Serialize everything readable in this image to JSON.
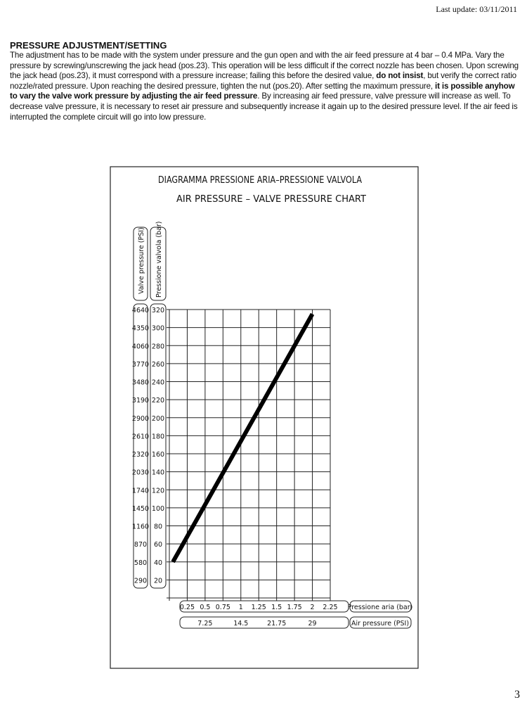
{
  "header": {
    "last_update": "Last update: 03/11/2011"
  },
  "section": {
    "title": "PRESSURE ADJUSTMENT/SETTING",
    "p1": "The adjustment has to be made with the system under pressure and the gun open and with the air feed pressure at 4 bar – 0.4 MPa. Vary the pressure by screwing/unscrewing the jack head (pos.23). This operation will be less difficult if the correct nozzle has been chosen. Upon screwing the jack head (pos.23), it must correspond with a pressure increase; failing this before the desired value, ",
    "b1": "do not insist",
    "p2": ", but verify the correct ratio nozzle/rated pressure. Upon reaching the desired pressure, tighten the nut (pos.20). After setting the maximum pressure, ",
    "b2": "it is possible anyhow to vary the valve work pressure by adjusting the air feed pressure",
    "p3": ". By increasing air feed pressure, valve pressure will increase as well. To decrease valve pressure, it is necessary to reset air pressure and subsequently increase it again up to the desired pressure level. If the air feed is interrupted the complete circuit will go into low pressure."
  },
  "chart_data": {
    "type": "line",
    "title": "DIAGRAMMA PRESSIONE ARIA–PRESSIONE VALVOLA",
    "subtitle": "AIR PRESSURE – VALVE PRESSURE CHART",
    "xlabel": "Pressione aria (bar)",
    "xlabel2": "Air pressure (PSI)",
    "ylabel": "Pressione valvola (bar)",
    "ylabel2": "Valve pressure (PSI)",
    "xlim": [
      0,
      2.25
    ],
    "ylim": [
      0,
      320
    ],
    "grid": true,
    "x_ticks": [
      "0.25",
      "0.5",
      "0.75",
      "1",
      "1.25",
      "1.5",
      "1.75",
      "2",
      "2.25"
    ],
    "x_ticks_psi": [
      "7.25",
      "14.5",
      "21.75",
      "29"
    ],
    "x_ticks_psi_values": [
      0.5,
      1,
      1.5,
      2
    ],
    "y_ticks": [
      "320",
      "300",
      "280",
      "260",
      "240",
      "220",
      "200",
      "180",
      "160",
      "140",
      "120",
      "100",
      "80",
      "60",
      "40",
      "20"
    ],
    "y_ticks_psi": [
      "4640",
      "4350",
      "4060",
      "3770",
      "3480",
      "3190",
      "2900",
      "2610",
      "2320",
      "2030",
      "1740",
      "1450",
      "1160",
      "870",
      "580",
      "290"
    ],
    "series": [
      {
        "x": [
          0.05,
          2.0
        ],
        "y": [
          40,
          315
        ]
      }
    ],
    "line_color": "#000000"
  },
  "footer": {
    "page_number": "3"
  }
}
